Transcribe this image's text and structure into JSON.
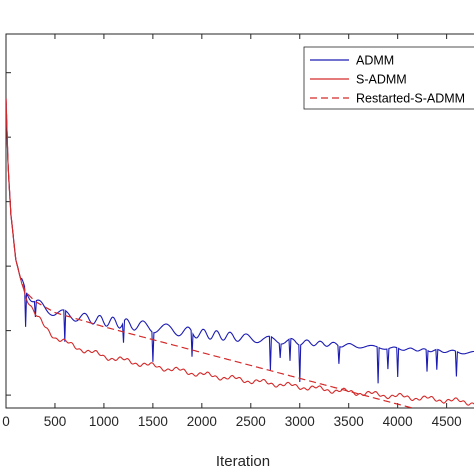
{
  "chart_data": {
    "type": "line",
    "xlabel": "Iteration",
    "ylabel": "",
    "xlim": [
      0,
      4800
    ],
    "y_scale": "log",
    "ylim_log10": [
      -4.2,
      1.6
    ],
    "grid": false,
    "legend_position": "top-right",
    "xticks": [
      0,
      500,
      1000,
      1500,
      2000,
      2500,
      3000,
      3500,
      4000,
      4500
    ],
    "xtick_labels": [
      "0",
      "500",
      "1000",
      "1500",
      "2000",
      "2500",
      "3000",
      "3500",
      "4000",
      "4500"
    ],
    "series": [
      {
        "name": "ADMM",
        "color": "#1c1cb4",
        "dash": "solid",
        "x": [
          0,
          20,
          50,
          100,
          150,
          200,
          300,
          400,
          500,
          700,
          1000,
          1500,
          2000,
          2500,
          3000,
          3500,
          4000,
          4500,
          4800
        ],
        "y_log10": [
          0.6,
          -0.4,
          -1.2,
          -1.9,
          -2.2,
          -2.4,
          -2.55,
          -2.65,
          -2.72,
          -2.78,
          -2.85,
          -2.95,
          -3.05,
          -3.12,
          -3.18,
          -3.23,
          -3.28,
          -3.32,
          -3.35
        ]
      },
      {
        "name": "S-ADMM",
        "color": "#d42a2a",
        "dash": "solid",
        "x": [
          0,
          20,
          50,
          100,
          150,
          200,
          300,
          400,
          500,
          700,
          1000,
          1500,
          2000,
          2500,
          3000,
          3500,
          4000,
          4500,
          4800
        ],
        "y_log10": [
          0.6,
          -0.4,
          -1.2,
          -1.9,
          -2.2,
          -2.45,
          -2.75,
          -2.95,
          -3.1,
          -3.25,
          -3.4,
          -3.55,
          -3.68,
          -3.78,
          -3.87,
          -3.95,
          -4.02,
          -4.08,
          -4.12
        ]
      },
      {
        "name": "Restarted-S-ADMM",
        "color": "#d42a2a",
        "dash": "dashed",
        "x": [
          0,
          20,
          50,
          100,
          150,
          200,
          300,
          500,
          1000,
          1500,
          2000,
          2500,
          3000,
          3500,
          4000,
          4500,
          4800
        ],
        "y_log10": [
          0.6,
          -0.4,
          -1.2,
          -1.9,
          -2.2,
          -2.4,
          -2.55,
          -2.72,
          -2.94,
          -3.14,
          -3.34,
          -3.54,
          -3.74,
          -3.94,
          -4.14,
          -4.34,
          -4.46
        ]
      }
    ]
  }
}
